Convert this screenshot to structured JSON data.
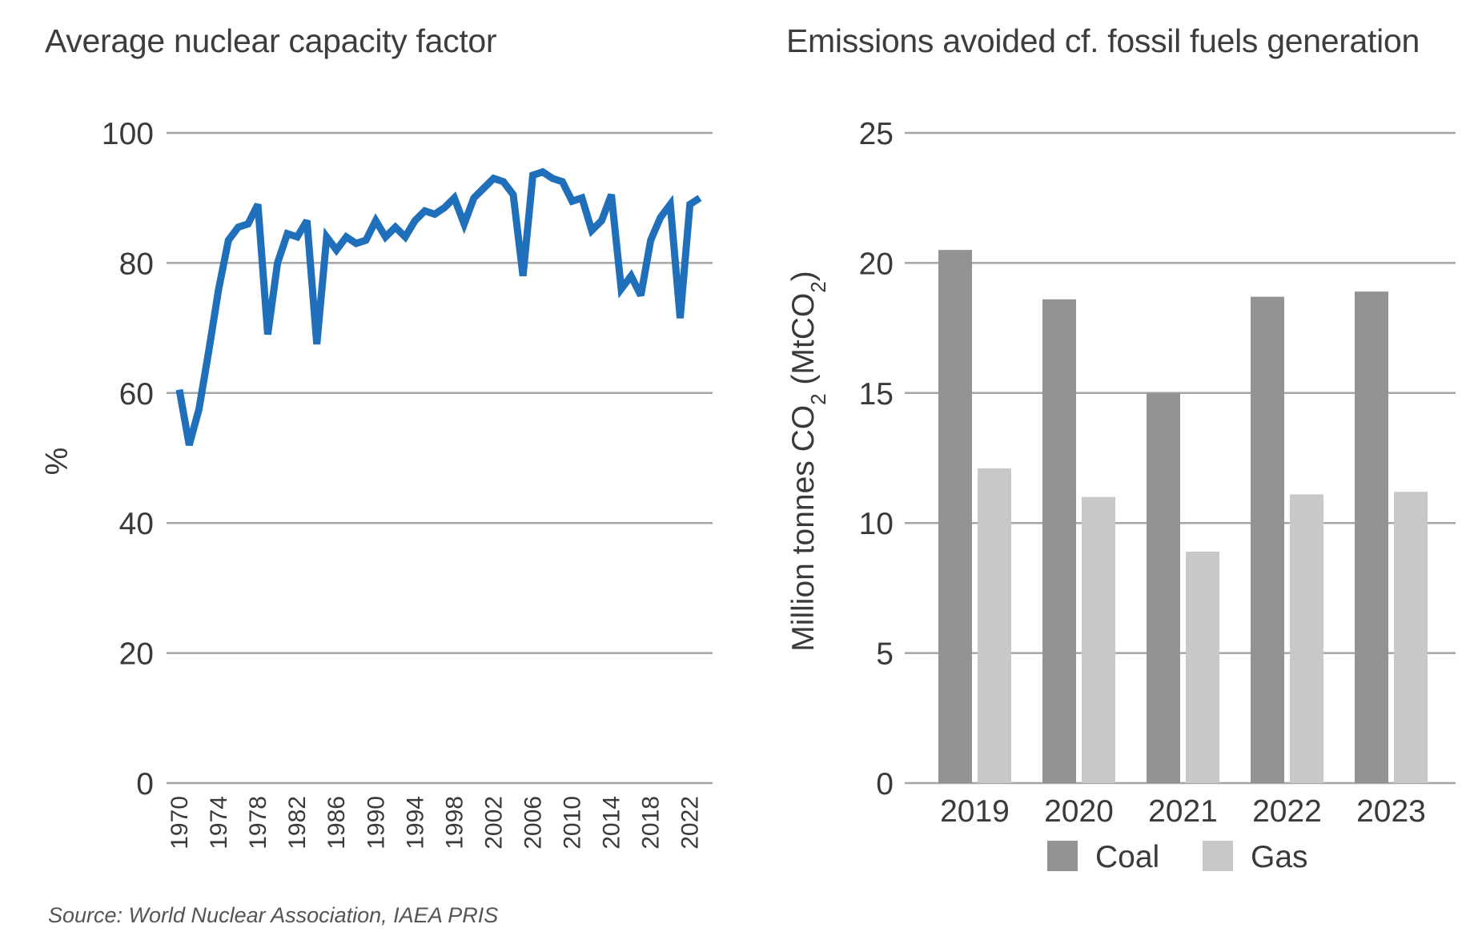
{
  "source": "Source: World Nuclear Association, IAEA PRIS",
  "colors": {
    "line": "#1f6fba",
    "coal": "#939396",
    "gas": "#c8c8ca",
    "grid": "#a5a5a5"
  },
  "chart_data": [
    {
      "type": "line",
      "title": "Average nuclear capacity factor",
      "ylabel": "%",
      "xlabel": "",
      "ylim": [
        0,
        100
      ],
      "yticks": [
        0,
        20,
        40,
        60,
        80,
        100
      ],
      "xticks": [
        "1970",
        "1974",
        "1978",
        "1982",
        "1986",
        "1990",
        "1994",
        "1998",
        "2002",
        "2006",
        "2010",
        "2014",
        "2018",
        "2022"
      ],
      "grid": true,
      "series": [
        {
          "x": [
            1970,
            1971,
            1972,
            1973,
            1974,
            1975,
            1976,
            1977,
            1978,
            1979,
            1980,
            1981,
            1982,
            1983,
            1984,
            1985,
            1986,
            1987,
            1988,
            1989,
            1990,
            1991,
            1992,
            1993,
            1994,
            1995,
            1996,
            1997,
            1998,
            1999,
            2000,
            2001,
            2002,
            2003,
            2004,
            2005,
            2006,
            2007,
            2008,
            2009,
            2010,
            2011,
            2012,
            2013,
            2014,
            2015,
            2016,
            2017,
            2018,
            2019,
            2020,
            2021,
            2022,
            2023
          ],
          "values": [
            60.5,
            52,
            57.5,
            66.5,
            76,
            83.5,
            85.5,
            86,
            89,
            69,
            80,
            84.5,
            84,
            86.5,
            67.5,
            84,
            82,
            84,
            83,
            83.5,
            86.5,
            84,
            85.5,
            84,
            86.5,
            88,
            87.5,
            88.5,
            90,
            86,
            90,
            91.5,
            93,
            92.5,
            90.5,
            78,
            93.5,
            94,
            93,
            92.5,
            89.5,
            90,
            85,
            86.5,
            90.5,
            76,
            78,
            75,
            83.5,
            87,
            89,
            71.5,
            89,
            90
          ]
        }
      ]
    },
    {
      "type": "bar",
      "title": "Emissions avoided cf. fossil fuels generation",
      "ylabel": "Million tonnes CO2 (MtCO2)",
      "xlabel": "",
      "ylim": [
        0,
        25
      ],
      "yticks": [
        0,
        5,
        10,
        15,
        20,
        25
      ],
      "grid": true,
      "legend_position": "bottom",
      "categories": [
        "2019",
        "2020",
        "2021",
        "2022",
        "2023"
      ],
      "series": [
        {
          "name": "Coal",
          "values": [
            20.5,
            18.6,
            15.0,
            18.7,
            18.9
          ]
        },
        {
          "name": "Gas",
          "values": [
            12.1,
            11.0,
            8.9,
            11.1,
            11.2
          ]
        }
      ]
    }
  ]
}
